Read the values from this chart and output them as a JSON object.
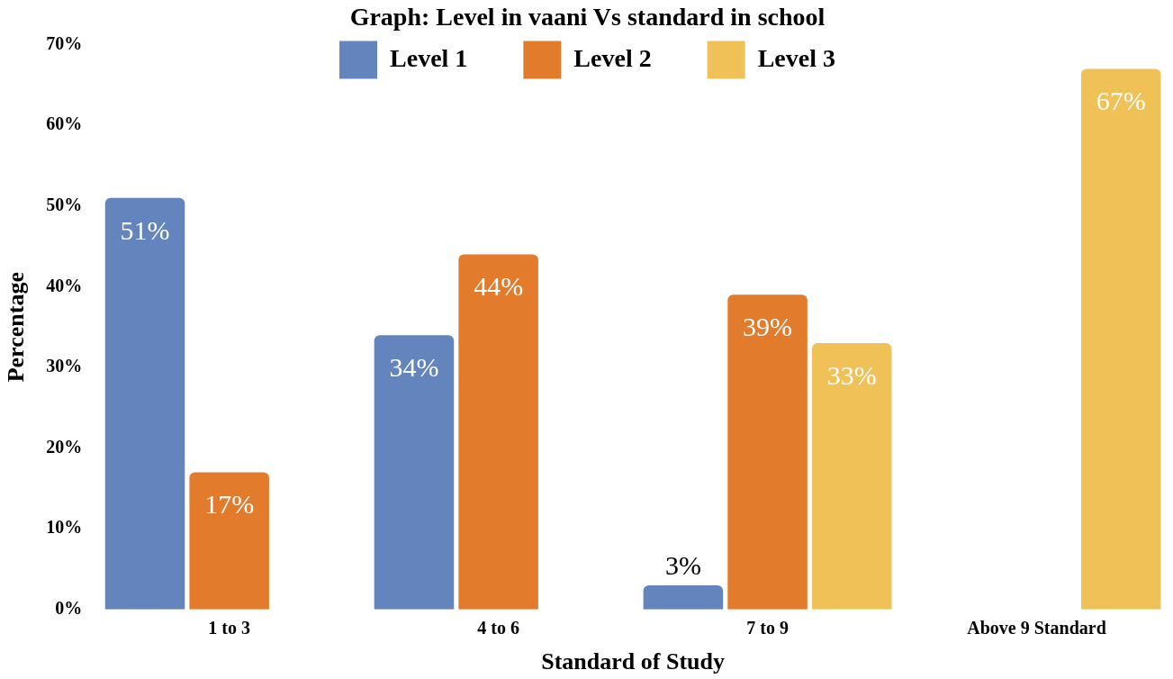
{
  "chart_data": {
    "type": "bar",
    "title": "Graph: Level in vaani Vs standard in school",
    "xlabel": "Standard of Study",
    "ylabel": "Percentage",
    "categories": [
      "1 to 3",
      "4 to 6",
      "7 to 9",
      "Above 9 Standard"
    ],
    "series": [
      {
        "name": "Level 1",
        "color": "#6384bd",
        "values": [
          51,
          34,
          3,
          null
        ],
        "value_labels": [
          "51%",
          "34%",
          "3%",
          null
        ]
      },
      {
        "name": "Level 2",
        "color": "#e37b2d",
        "values": [
          17,
          44,
          39,
          null
        ],
        "value_labels": [
          "17%",
          "44%",
          "39%",
          null
        ]
      },
      {
        "name": "Level 3",
        "color": "#f0c157",
        "values": [
          null,
          null,
          33,
          67
        ],
        "value_labels": [
          null,
          null,
          "33%",
          "67%"
        ]
      }
    ],
    "ylim": [
      0,
      70
    ],
    "yticks": [
      {
        "value": 0,
        "label": "0%"
      },
      {
        "value": 10,
        "label": "10%"
      },
      {
        "value": 20,
        "label": "20%"
      },
      {
        "value": 30,
        "label": "30%"
      },
      {
        "value": 40,
        "label": "40%"
      },
      {
        "value": 50,
        "label": "50%"
      },
      {
        "value": 60,
        "label": "60%"
      },
      {
        "value": 70,
        "label": "70%"
      }
    ],
    "legend": "top",
    "grid": false
  }
}
